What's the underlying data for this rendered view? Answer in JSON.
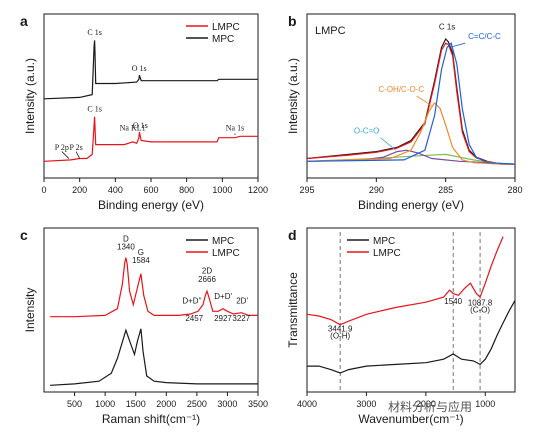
{
  "figure": {
    "watermark": "材料分析与应用",
    "panel_letters": [
      "a",
      "b",
      "c",
      "d"
    ]
  },
  "colors": {
    "red": "#e8141b",
    "black": "#1a1a1a",
    "blue": "#2060d8",
    "orange": "#f08a2c",
    "cyan": "#38a8d8",
    "purple": "#7a4aa8",
    "green": "#7ac050",
    "dashed": "#555555"
  },
  "chart_data": [
    {
      "type": "line",
      "panel": "a",
      "xlabel": "Binding energy (eV)",
      "ylabel": "Intensity (a.u.)",
      "xlim": [
        0,
        1200
      ],
      "xticks": [
        0,
        200,
        400,
        600,
        800,
        1000,
        1200
      ],
      "grid": false,
      "legend_position": "top-right",
      "series": [
        {
          "name": "LMPC",
          "color": "#e8141b",
          "x": [
            0,
            150,
            200,
            240,
            270,
            281,
            284,
            286,
            290,
            330,
            450,
            497,
            520,
            532,
            535,
            545,
            600,
            800,
            970,
            980,
            1071,
            1100,
            1200
          ],
          "y": [
            0.12,
            0.13,
            0.14,
            0.14,
            0.17,
            0.38,
            0.44,
            0.37,
            0.24,
            0.24,
            0.24,
            0.26,
            0.25,
            0.29,
            0.33,
            0.27,
            0.26,
            0.26,
            0.26,
            0.29,
            0.29,
            0.3,
            0.3
          ]
        },
        {
          "name": "MPC",
          "color": "#1a1a1a",
          "x": [
            0,
            200,
            270,
            281,
            284,
            286,
            290,
            400,
            520,
            532,
            535,
            545,
            800,
            970,
            980,
            1200
          ],
          "y": [
            0.57,
            0.58,
            0.6,
            0.95,
            0.99,
            0.9,
            0.68,
            0.68,
            0.69,
            0.71,
            0.74,
            0.7,
            0.7,
            0.7,
            0.71,
            0.71
          ]
        }
      ],
      "annotations": [
        {
          "text": "C 1s",
          "x": 284,
          "y": 1.03
        },
        {
          "text": "O 1s",
          "x": 534,
          "y": 0.77
        },
        {
          "text": "C 1s",
          "x": 284,
          "y": 0.48
        },
        {
          "text": "O 1s",
          "x": 540,
          "y": 0.36
        },
        {
          "text": "Na KL1",
          "x": 497,
          "y": 0.34
        },
        {
          "text": "P 2p",
          "x": 100,
          "y": 0.2
        },
        {
          "text": "P 2s",
          "x": 180,
          "y": 0.2
        },
        {
          "text": "Na 1s",
          "x": 1071,
          "y": 0.34
        }
      ]
    },
    {
      "type": "line",
      "panel": "b",
      "title": "LMPC",
      "xlabel": "Binding energy (eV)",
      "ylabel": "Intensity (a.u.)",
      "xlim": [
        295,
        280
      ],
      "xticks": [
        295,
        290,
        285,
        280
      ],
      "grid": false,
      "series": [
        {
          "name": "",
          "color": "#1a1a1a",
          "x": [
            295,
            292,
            290,
            288.5,
            287.5,
            286.5,
            285.8,
            285.3,
            285.0,
            284.8,
            284.5,
            284.2,
            283.8,
            283.3,
            282.8,
            282,
            281,
            280
          ],
          "y": [
            0.14,
            0.17,
            0.19,
            0.22,
            0.27,
            0.4,
            0.7,
            0.94,
            1.0,
            0.98,
            0.9,
            0.65,
            0.35,
            0.2,
            0.15,
            0.12,
            0.1,
            0.1
          ]
        },
        {
          "name": "",
          "color": "#e8141b",
          "x": [
            295,
            292,
            290,
            288.5,
            287.5,
            286.5,
            285.8,
            285.3,
            285.0,
            284.8,
            284.5,
            284.2,
            283.8,
            283.3,
            282.8,
            282,
            281,
            280
          ],
          "y": [
            0.14,
            0.165,
            0.185,
            0.215,
            0.26,
            0.39,
            0.68,
            0.92,
            0.97,
            0.96,
            0.88,
            0.62,
            0.33,
            0.19,
            0.145,
            0.118,
            0.1,
            0.1
          ]
        },
        {
          "name": "",
          "color": "#7ac050",
          "x": [
            295,
            290,
            287,
            285,
            283,
            281,
            280
          ],
          "y": [
            0.12,
            0.14,
            0.16,
            0.17,
            0.13,
            0.1,
            0.1
          ]
        },
        {
          "name": "",
          "color": "#7a4aa8",
          "x": [
            295,
            291,
            289.5,
            288.5,
            287.8,
            287,
            286,
            284,
            282,
            280
          ],
          "y": [
            0.12,
            0.13,
            0.15,
            0.19,
            0.2,
            0.18,
            0.14,
            0.12,
            0.11,
            0.1
          ]
        },
        {
          "name": "",
          "color": "#f08a2c",
          "x": [
            295,
            289,
            287.5,
            286.8,
            286.2,
            285.8,
            285.4,
            285.0,
            284.5,
            283.8,
            283,
            281,
            280
          ],
          "y": [
            0.12,
            0.14,
            0.2,
            0.33,
            0.48,
            0.54,
            0.5,
            0.38,
            0.22,
            0.13,
            0.11,
            0.1,
            0.1
          ]
        },
        {
          "name": "",
          "color": "#2060d8",
          "x": [
            295,
            288,
            286.5,
            285.8,
            285.3,
            284.9,
            284.6,
            284.2,
            283.8,
            283.3,
            282.8,
            282,
            280
          ],
          "y": [
            0.12,
            0.13,
            0.2,
            0.45,
            0.78,
            0.94,
            0.97,
            0.82,
            0.5,
            0.24,
            0.15,
            0.11,
            0.1
          ]
        }
      ],
      "annotations": [
        {
          "text": "C 1s",
          "x": 284.9,
          "y": 1.07,
          "color": "#1a1a1a"
        },
        {
          "text": "C=C/C-C",
          "x": 282.2,
          "y": 1.0,
          "color": "#2060d8"
        },
        {
          "text": "C-OH/C-O-C",
          "x": 288.2,
          "y": 0.62,
          "color": "#f08a2c"
        },
        {
          "text": "O-C=O",
          "x": 290.7,
          "y": 0.32,
          "color": "#38a8d8"
        }
      ]
    },
    {
      "type": "line",
      "panel": "c",
      "xlabel": "Raman shift(cm⁻¹)",
      "ylabel": "Intensity",
      "xlim": [
        0,
        3500
      ],
      "xticks": [
        500,
        1000,
        1500,
        2000,
        2500,
        3000,
        3500
      ],
      "grid": false,
      "legend_position": "top-right",
      "series": [
        {
          "name": "MPC",
          "color": "#1a1a1a",
          "x": [
            100,
            500,
            900,
            1100,
            1200,
            1300,
            1340,
            1400,
            1480,
            1530,
            1584,
            1620,
            1680,
            1800,
            2000,
            2500,
            3000,
            3500
          ],
          "y": [
            0.05,
            0.06,
            0.08,
            0.14,
            0.25,
            0.4,
            0.46,
            0.38,
            0.28,
            0.38,
            0.47,
            0.3,
            0.12,
            0.08,
            0.07,
            0.06,
            0.06,
            0.06
          ]
        },
        {
          "name": "LMPC",
          "color": "#e8141b",
          "x": [
            100,
            500,
            1000,
            1200,
            1280,
            1320,
            1340,
            1360,
            1400,
            1460,
            1540,
            1584,
            1630,
            1700,
            1800,
            2200,
            2400,
            2457,
            2520,
            2600,
            2640,
            2666,
            2700,
            2760,
            2850,
            2927,
            3000,
            3100,
            3227,
            3350,
            3500
          ],
          "y": [
            0.56,
            0.56,
            0.57,
            0.62,
            0.8,
            0.96,
            1.0,
            0.95,
            0.75,
            0.65,
            0.8,
            0.88,
            0.72,
            0.6,
            0.57,
            0.57,
            0.58,
            0.59,
            0.6,
            0.65,
            0.72,
            0.75,
            0.7,
            0.6,
            0.6,
            0.62,
            0.6,
            0.58,
            0.59,
            0.57,
            0.57
          ]
        }
      ],
      "annotations": [
        {
          "text": "D",
          "x": 1340,
          "y": 1.12
        },
        {
          "text": "1340",
          "x": 1340,
          "y": 1.06
        },
        {
          "text": "G",
          "x": 1584,
          "y": 1.02
        },
        {
          "text": "1584",
          "x": 1584,
          "y": 0.96
        },
        {
          "text": "2D",
          "x": 2666,
          "y": 0.88
        },
        {
          "text": "2666",
          "x": 2666,
          "y": 0.82
        },
        {
          "text": "D+D''",
          "x": 2420,
          "y": 0.66
        },
        {
          "text": "2457",
          "x": 2457,
          "y": 0.53
        },
        {
          "text": "D+D'",
          "x": 2930,
          "y": 0.69
        },
        {
          "text": "2927",
          "x": 2927,
          "y": 0.53
        },
        {
          "text": "2D'",
          "x": 3240,
          "y": 0.66
        },
        {
          "text": "3227",
          "x": 3227,
          "y": 0.53
        }
      ]
    },
    {
      "type": "line",
      "panel": "d",
      "xlabel": "Wavenumber(cm⁻¹)",
      "ylabel": "Transmittance",
      "xlim": [
        4000,
        500
      ],
      "xticks": [
        4000,
        3000,
        2000,
        1000
      ],
      "grid": false,
      "legend_position": "top-left",
      "series": [
        {
          "name": "MPC",
          "color": "#1a1a1a",
          "x": [
            4000,
            3800,
            3600,
            3441.9,
            3300,
            3000,
            2500,
            2000,
            1700,
            1540,
            1400,
            1200,
            1087.8,
            1000,
            900,
            800,
            700,
            600,
            500
          ],
          "y": [
            0.3,
            0.3,
            0.28,
            0.26,
            0.28,
            0.3,
            0.31,
            0.32,
            0.34,
            0.37,
            0.34,
            0.33,
            0.31,
            0.34,
            0.4,
            0.48,
            0.55,
            0.62,
            0.68
          ]
        },
        {
          "name": "LMPC",
          "color": "#e8141b",
          "x": [
            4000,
            3800,
            3600,
            3441.9,
            3300,
            3000,
            2500,
            2000,
            1700,
            1600,
            1540,
            1450,
            1350,
            1250,
            1150,
            1087.8,
            1000,
            900,
            800,
            700
          ],
          "y": [
            0.6,
            0.59,
            0.57,
            0.54,
            0.56,
            0.6,
            0.64,
            0.67,
            0.7,
            0.74,
            0.72,
            0.71,
            0.75,
            0.78,
            0.72,
            0.7,
            0.78,
            0.88,
            0.97,
            1.05
          ]
        }
      ],
      "reference_lines": [
        3441.9,
        1540,
        1087.8
      ],
      "annotations": [
        {
          "text": "3441.9",
          "x": 3441.9,
          "y": 0.5
        },
        {
          "text": "(O-H)",
          "x": 3441.9,
          "y": 0.46
        },
        {
          "text": "1540",
          "x": 1540,
          "y": 0.66
        },
        {
          "text": "1087.8",
          "x": 1087.8,
          "y": 0.65
        },
        {
          "text": "(C-O)",
          "x": 1087.8,
          "y": 0.61
        }
      ]
    }
  ]
}
